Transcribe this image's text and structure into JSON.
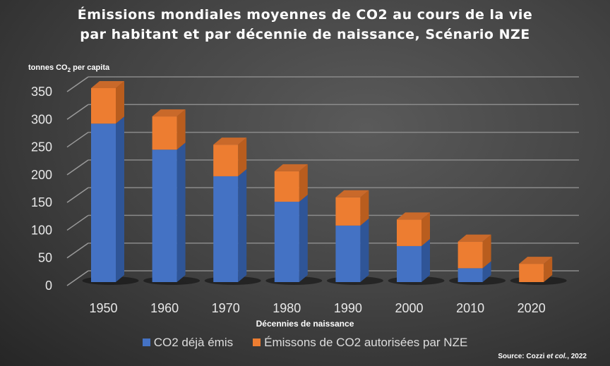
{
  "chart_data": {
    "type": "bar",
    "stacked": true,
    "three_d": true,
    "title_line1": "Émissions mondiales moyennes de CO2 au cours de la vie",
    "title_line2": "par habitant et par décennie de naissance, Scénario NZE",
    "ylabel": "tonnes CO",
    "ylabel_sub": "2",
    "ylabel_rest": " per capita",
    "xlabel": "Décennies de naissance",
    "categories": [
      "1950",
      "1960",
      "1970",
      "1980",
      "1990",
      "2000",
      "2010",
      "2020"
    ],
    "series": [
      {
        "name": "CO2 déjà émis",
        "color": "#4472c4",
        "values": [
          286,
          239,
          191,
          145,
          102,
          65,
          25,
          0
        ]
      },
      {
        "name": "Émissons de CO2 autorisées par NZE",
        "color": "#ed7d31",
        "values": [
          64,
          60,
          57,
          55,
          51,
          48,
          48,
          33
        ]
      }
    ],
    "ylim": [
      0,
      350
    ],
    "yticks": [
      "0",
      "50",
      "100",
      "150",
      "200",
      "250",
      "300",
      "350"
    ],
    "grid": true,
    "legend": "bottom"
  },
  "source": {
    "prefix": "Source:  Cozzi ",
    "italic": "et col.",
    "suffix": ", 2022"
  }
}
